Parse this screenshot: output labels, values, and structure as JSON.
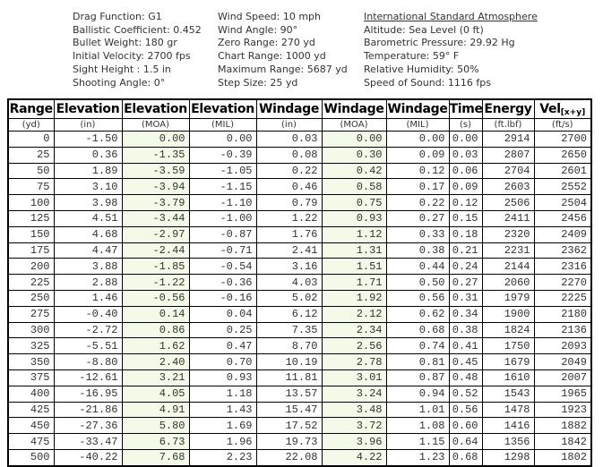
{
  "info": {
    "col1": [
      "Drag Function: G1",
      "Ballistic Coefficient: 0.452",
      "Bullet Weight: 180 gr",
      "Initial Velocity: 2700 fps",
      "Sight Height : 1.5 in",
      "Shooting Angle: 0°"
    ],
    "col2": [
      "Wind Speed: 10 mph",
      "Wind Angle: 90°",
      "Zero Range: 270 yd",
      "Chart Range: 1000 yd",
      "Maximum Range: 5687 yd",
      "Step Size: 25 yd"
    ],
    "col3_title": "International Standard Atmosphere",
    "col3_lines": [
      "Altitude: Sea Level (0 ft)",
      "Barometric Pressure: 29.92 Hg",
      "Temperature: 59° F",
      "Relative Humidity: 50%",
      "Speed of Sound: 1116 fps"
    ]
  },
  "table": {
    "columns": [
      {
        "label": "Range",
        "unit": "(yd)"
      },
      {
        "label": "Elevation",
        "unit": "(in)"
      },
      {
        "label": "Elevation",
        "unit": "(MOA)"
      },
      {
        "label": "Elevation",
        "unit": "(MIL)"
      },
      {
        "label": "Windage",
        "unit": "(in)"
      },
      {
        "label": "Windage",
        "unit": "(MOA)"
      },
      {
        "label": "Windage",
        "unit": "(MIL)"
      },
      {
        "label": "Time",
        "unit": "(s)"
      },
      {
        "label": "Energy",
        "unit": "(ft.lbf)"
      },
      {
        "label": "Vel",
        "label_sub": "[x+y]",
        "unit": "(ft/s)"
      }
    ],
    "highlight_columns": [
      2,
      5
    ],
    "rows": [
      [
        "0",
        "-1.50",
        "0.00",
        "0.00",
        "0.03",
        "0.00",
        "0.00",
        "0.00",
        "2914",
        "2700"
      ],
      [
        "25",
        "0.36",
        "-1.35",
        "-0.39",
        "0.08",
        "0.30",
        "0.09",
        "0.03",
        "2807",
        "2650"
      ],
      [
        "50",
        "1.89",
        "-3.59",
        "-1.05",
        "0.22",
        "0.42",
        "0.12",
        "0.06",
        "2704",
        "2601"
      ],
      [
        "75",
        "3.10",
        "-3.94",
        "-1.15",
        "0.46",
        "0.58",
        "0.17",
        "0.09",
        "2603",
        "2552"
      ],
      [
        "100",
        "3.98",
        "-3.79",
        "-1.10",
        "0.79",
        "0.75",
        "0.22",
        "0.12",
        "2506",
        "2504"
      ],
      [
        "125",
        "4.51",
        "-3.44",
        "-1.00",
        "1.22",
        "0.93",
        "0.27",
        "0.15",
        "2411",
        "2456"
      ],
      [
        "150",
        "4.68",
        "-2.97",
        "-0.87",
        "1.76",
        "1.12",
        "0.33",
        "0.18",
        "2320",
        "2409"
      ],
      [
        "175",
        "4.47",
        "-2.44",
        "-0.71",
        "2.41",
        "1.31",
        "0.38",
        "0.21",
        "2231",
        "2362"
      ],
      [
        "200",
        "3.88",
        "-1.85",
        "-0.54",
        "3.16",
        "1.51",
        "0.44",
        "0.24",
        "2144",
        "2316"
      ],
      [
        "225",
        "2.88",
        "-1.22",
        "-0.36",
        "4.03",
        "1.71",
        "0.50",
        "0.27",
        "2060",
        "2270"
      ],
      [
        "250",
        "1.46",
        "-0.56",
        "-0.16",
        "5.02",
        "1.92",
        "0.56",
        "0.31",
        "1979",
        "2225"
      ],
      [
        "275",
        "-0.40",
        "0.14",
        "0.04",
        "6.12",
        "2.12",
        "0.62",
        "0.34",
        "1900",
        "2180"
      ],
      [
        "300",
        "-2.72",
        "0.86",
        "0.25",
        "7.35",
        "2.34",
        "0.68",
        "0.38",
        "1824",
        "2136"
      ],
      [
        "325",
        "-5.51",
        "1.62",
        "0.47",
        "8.70",
        "2.56",
        "0.74",
        "0.41",
        "1750",
        "2093"
      ],
      [
        "350",
        "-8.80",
        "2.40",
        "0.70",
        "10.19",
        "2.78",
        "0.81",
        "0.45",
        "1679",
        "2049"
      ],
      [
        "375",
        "-12.61",
        "3.21",
        "0.93",
        "11.81",
        "3.01",
        "0.87",
        "0.48",
        "1610",
        "2007"
      ],
      [
        "400",
        "-16.95",
        "4.05",
        "1.18",
        "13.57",
        "3.24",
        "0.94",
        "0.52",
        "1543",
        "1965"
      ],
      [
        "425",
        "-21.86",
        "4.91",
        "1.43",
        "15.47",
        "3.48",
        "1.01",
        "0.56",
        "1478",
        "1923"
      ],
      [
        "450",
        "-27.36",
        "5.80",
        "1.69",
        "17.52",
        "3.72",
        "1.08",
        "0.60",
        "1416",
        "1882"
      ],
      [
        "475",
        "-33.47",
        "6.73",
        "1.96",
        "19.73",
        "3.96",
        "1.15",
        "0.64",
        "1356",
        "1842"
      ],
      [
        "500",
        "-40.22",
        "7.68",
        "2.23",
        "22.08",
        "4.22",
        "1.23",
        "0.68",
        "1298",
        "1802"
      ]
    ]
  },
  "colors": {
    "moa_column_bg": "#f4fae8",
    "table_border": "#000000",
    "text": "#333333"
  }
}
